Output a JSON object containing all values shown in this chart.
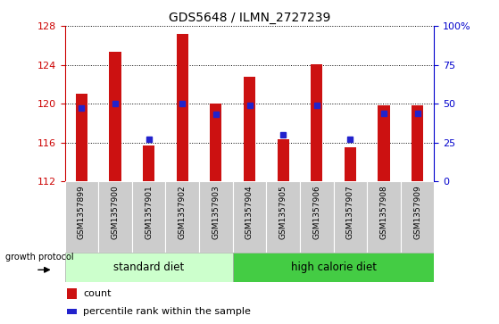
{
  "title": "GDS5648 / ILMN_2727239",
  "samples": [
    "GSM1357899",
    "GSM1357900",
    "GSM1357901",
    "GSM1357902",
    "GSM1357903",
    "GSM1357904",
    "GSM1357905",
    "GSM1357906",
    "GSM1357907",
    "GSM1357908",
    "GSM1357909"
  ],
  "count_values": [
    121.0,
    125.3,
    115.7,
    127.2,
    120.0,
    122.8,
    116.3,
    124.1,
    115.5,
    119.8,
    119.8
  ],
  "percentile_values": [
    47,
    50,
    27,
    50,
    43,
    49,
    30,
    49,
    27,
    44,
    44
  ],
  "ylim_left": [
    112,
    128
  ],
  "ylim_right": [
    0,
    100
  ],
  "yticks_left": [
    112,
    116,
    120,
    124,
    128
  ],
  "yticks_right": [
    0,
    25,
    50,
    75,
    100
  ],
  "bar_color": "#cc1111",
  "dot_color": "#2222cc",
  "bar_bottom": 112,
  "xticklabels_bg": "#cccccc",
  "group1_label": "standard diet",
  "group2_label": "high calorie diet",
  "group1_color": "#ccffcc",
  "group2_color": "#44cc44",
  "group1_indices": [
    0,
    1,
    2,
    3,
    4
  ],
  "group2_indices": [
    5,
    6,
    7,
    8,
    9,
    10
  ],
  "legend_count_label": "count",
  "legend_pct_label": "percentile rank within the sample",
  "protocol_label": "growth protocol",
  "left_axis_color": "#cc0000",
  "right_axis_color": "#0000cc"
}
